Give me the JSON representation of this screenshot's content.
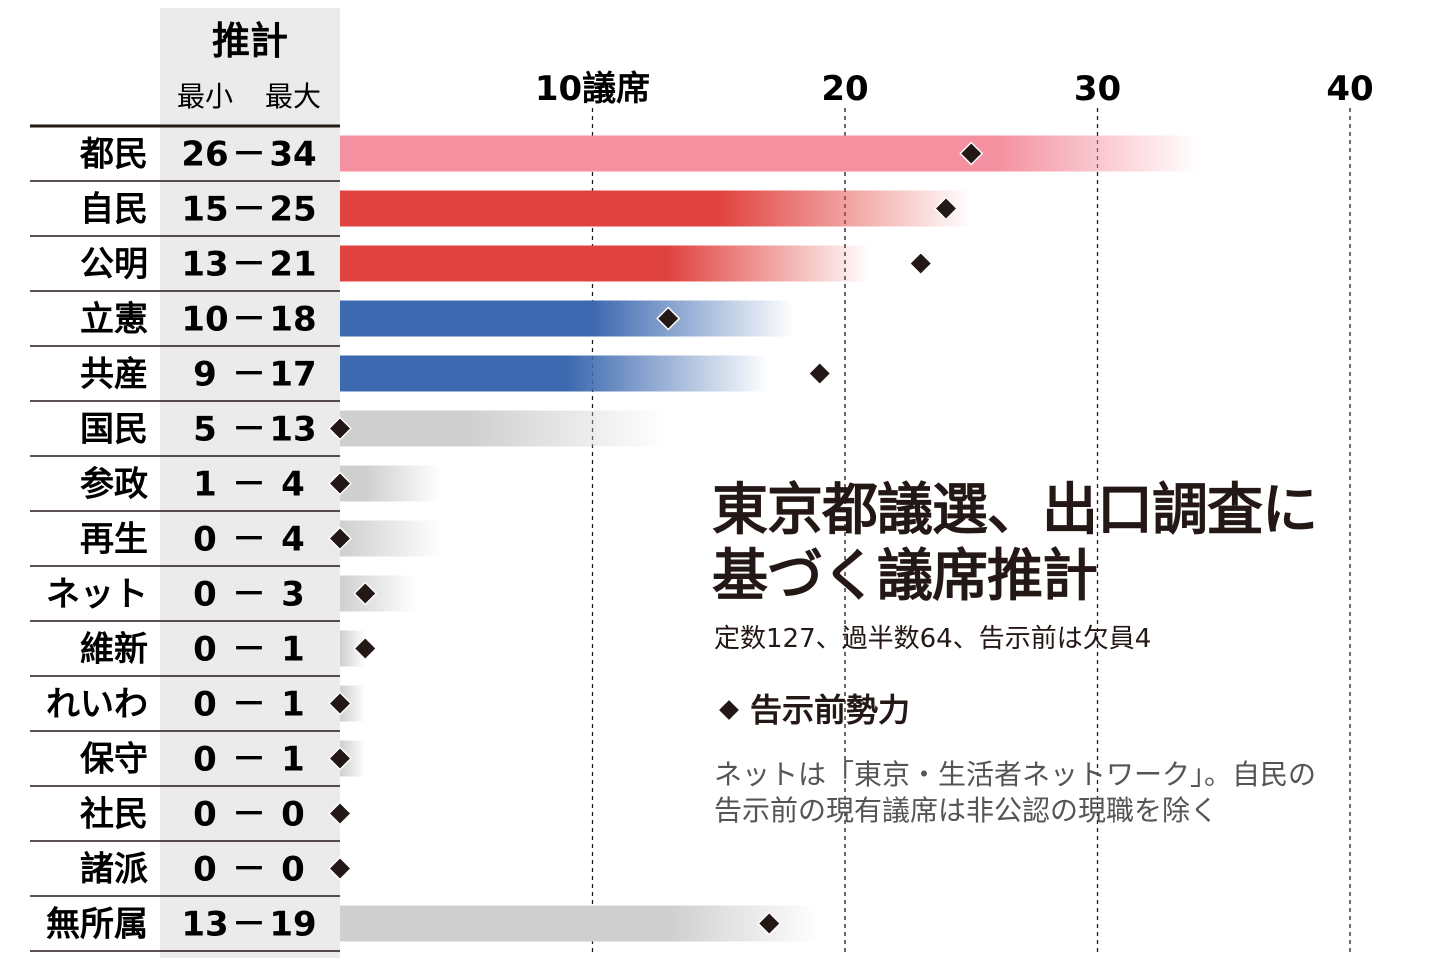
{
  "chart_data": {
    "type": "bar",
    "subtype": "range-bar",
    "header": {
      "title": "推計",
      "min_label": "最小",
      "max_label": "最大"
    },
    "x_ticks": [
      {
        "value": 10,
        "label": "10議席"
      },
      {
        "value": 20,
        "label": "20"
      },
      {
        "value": 30,
        "label": "30"
      },
      {
        "value": 40,
        "label": "40"
      }
    ],
    "xlim": [
      0,
      40
    ],
    "grid": "vertical dashed",
    "rows": [
      {
        "party": "都民",
        "min": 26,
        "max": 34,
        "sep": "－",
        "range_label_min": "26",
        "range_label_max": "34",
        "pre": 25,
        "color": "#f4909f"
      },
      {
        "party": "自民",
        "min": 15,
        "max": 25,
        "sep": "－",
        "range_label_min": "15",
        "range_label_max": "25",
        "pre": 24,
        "color": "#e0433f"
      },
      {
        "party": "公明",
        "min": 13,
        "max": 21,
        "sep": "－",
        "range_label_min": "13",
        "range_label_max": "21",
        "pre": 23,
        "color": "#e0433f"
      },
      {
        "party": "立憲",
        "min": 10,
        "max": 18,
        "sep": "－",
        "range_label_min": "10",
        "range_label_max": "18",
        "pre": 13,
        "color": "#3d69b0"
      },
      {
        "party": "共産",
        "min": 9,
        "max": 17,
        "sep": "－",
        "range_label_min": "9",
        "range_label_max": "17",
        "pre": 19,
        "color": "#3d69b0"
      },
      {
        "party": "国民",
        "min": 5,
        "max": 13,
        "sep": "－",
        "range_label_min": "5",
        "range_label_max": "13",
        "pre": 0,
        "color": "#cfcfcf"
      },
      {
        "party": "参政",
        "min": 1,
        "max": 4,
        "sep": "－",
        "range_label_min": "1",
        "range_label_max": "4",
        "pre": 0,
        "color": "#cfcfcf"
      },
      {
        "party": "再生",
        "min": 0,
        "max": 4,
        "sep": "－",
        "range_label_min": "0",
        "range_label_max": "4",
        "pre": 0,
        "color": "#cfcfcf"
      },
      {
        "party": "ネット",
        "min": 0,
        "max": 3,
        "sep": "－",
        "range_label_min": "0",
        "range_label_max": "3",
        "pre": 1,
        "color": "#cfcfcf"
      },
      {
        "party": "維新",
        "min": 0,
        "max": 1,
        "sep": "－",
        "range_label_min": "0",
        "range_label_max": "1",
        "pre": 1,
        "color": "#cfcfcf"
      },
      {
        "party": "れいわ",
        "min": 0,
        "max": 1,
        "sep": "－",
        "range_label_min": "0",
        "range_label_max": "1",
        "pre": 0,
        "color": "#cfcfcf"
      },
      {
        "party": "保守",
        "min": 0,
        "max": 1,
        "sep": "－",
        "range_label_min": "0",
        "range_label_max": "1",
        "pre": 0,
        "color": "#cfcfcf"
      },
      {
        "party": "社民",
        "min": 0,
        "max": 0,
        "sep": "－",
        "range_label_min": "0",
        "range_label_max": "0",
        "pre": 0,
        "color": "#cfcfcf"
      },
      {
        "party": "諸派",
        "min": 0,
        "max": 0,
        "sep": "－",
        "range_label_min": "0",
        "range_label_max": "0",
        "pre": 0,
        "color": "#cfcfcf"
      },
      {
        "party": "無所属",
        "min": 13,
        "max": 19,
        "sep": "－",
        "range_label_min": "13",
        "range_label_max": "19",
        "pre": 17,
        "color": "#cfcfcf"
      }
    ],
    "title": "東京都議選、出口調査に基づく議席推計",
    "title_line1": "東京都議選、出口調査に",
    "title_line2": "基づく議席推計",
    "subtitle": "定数127、過半数64、告示前は欠員4",
    "legend": "告示前勢力",
    "note_line1": "ネットは「東京・生活者ネットワーク」。自民の",
    "note_line2": "告示前の現有議席は非公認の現職を除く"
  }
}
